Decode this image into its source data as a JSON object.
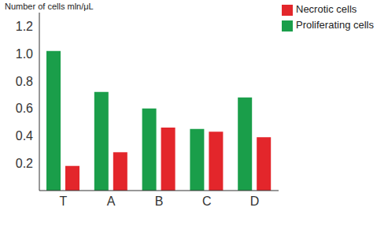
{
  "chart_data": {
    "type": "bar",
    "y_label": "Number of cells mln/μL",
    "categories": [
      "T",
      "A",
      "B",
      "C",
      "D"
    ],
    "series": [
      {
        "name": "Proliferating cells",
        "color": "#1a9e4a",
        "values": [
          1.02,
          0.72,
          0.6,
          0.45,
          0.68
        ]
      },
      {
        "name": "Necrotic cells",
        "color": "#e3262b",
        "values": [
          0.18,
          0.28,
          0.46,
          0.43,
          0.39
        ]
      }
    ],
    "ylim": [
      0,
      1.3
    ],
    "yticks": [
      0.2,
      0.4,
      0.6,
      0.8,
      {
        "value": 1,
        "label": "1.0"
      },
      1.2
    ],
    "legend": "upper right"
  }
}
